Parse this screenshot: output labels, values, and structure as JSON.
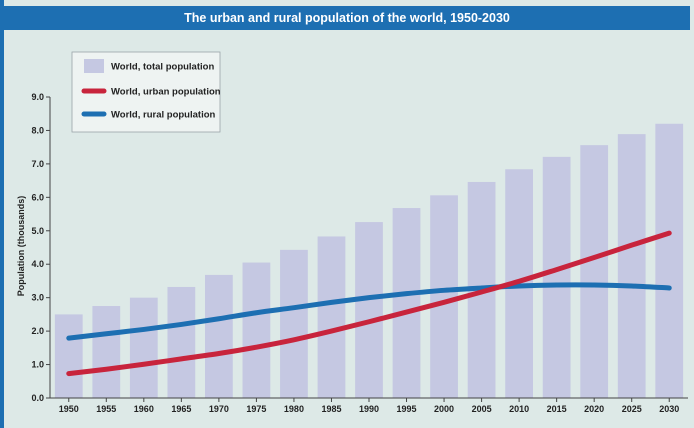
{
  "chart_data": {
    "type": "bar",
    "title": "The urban and rural population of the world, 1950-2030",
    "ylabel": "Population (thousands)",
    "xlabel": "",
    "ylim": [
      0,
      9.0
    ],
    "yticks": [
      "0.0",
      "1.0",
      "2.0",
      "3.0",
      "4.0",
      "5.0",
      "6.0",
      "7.0",
      "8.0",
      "9.0"
    ],
    "categories": [
      "1950",
      "1955",
      "1960",
      "1965",
      "1970",
      "1975",
      "1980",
      "1985",
      "1990",
      "1995",
      "2000",
      "2005",
      "2010",
      "2015",
      "2020",
      "2025",
      "2030"
    ],
    "series": [
      {
        "name": "World, total population",
        "type": "bar",
        "color": "#c5c8e2",
        "values": [
          2.5,
          2.75,
          3.0,
          3.32,
          3.68,
          4.05,
          4.43,
          4.83,
          5.26,
          5.68,
          6.06,
          6.46,
          6.84,
          7.21,
          7.56,
          7.89,
          8.2
        ]
      },
      {
        "name": "World, urban population",
        "type": "line",
        "color": "#c8243c",
        "values": [
          0.73,
          0.86,
          1.01,
          1.17,
          1.33,
          1.52,
          1.74,
          2.0,
          2.28,
          2.57,
          2.86,
          3.17,
          3.49,
          3.84,
          4.2,
          4.57,
          4.93
        ]
      },
      {
        "name": "World, rural population",
        "type": "line",
        "color": "#1d6fb2",
        "values": [
          1.79,
          1.92,
          2.05,
          2.2,
          2.37,
          2.55,
          2.7,
          2.86,
          3.0,
          3.12,
          3.22,
          3.29,
          3.35,
          3.38,
          3.38,
          3.35,
          3.29
        ]
      }
    ],
    "legend": "top-left",
    "grid": false
  }
}
